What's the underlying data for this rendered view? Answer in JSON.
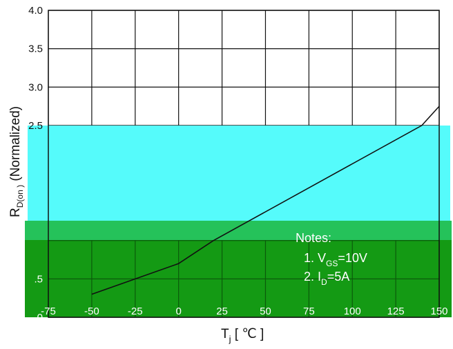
{
  "colors": {
    "band_cyan": "#55fbfb",
    "band_green": "#149a14",
    "strip_green": "#25c25a",
    "grid_dark": "#111111",
    "grid_on_green": "#0b5a0b",
    "curve": "#111111",
    "note_text": "#ffffff"
  },
  "chart_data": {
    "type": "line",
    "xlabel_main": "T",
    "xlabel_sub": "j",
    "xlabel_unit": " [ ℃ ]",
    "ylabel_main": "R",
    "ylabel_sub": "D(on )",
    "ylabel_rest": " (Normalized)",
    "xlim": [
      -75,
      150
    ],
    "ylim": [
      0.0,
      4.0
    ],
    "x_ticks": [
      "-75",
      "-50",
      "-25",
      "0",
      "25",
      "50",
      "75",
      "100",
      "125",
      "150"
    ],
    "y_ticks": [
      {
        "v": 4.0,
        "label": "4.0"
      },
      {
        "v": 3.5,
        "label": "3.5"
      },
      {
        "v": 3.0,
        "label": "3.0"
      },
      {
        "v": 2.5,
        "label": "2.5"
      },
      {
        "v": 0.5,
        "label": ".5"
      },
      {
        "v": 0.0,
        "label": "0"
      }
    ],
    "grid": true,
    "series": [
      {
        "x": [
          -50,
          -25,
          0,
          20,
          140,
          150
        ],
        "y": [
          0.3,
          0.5,
          0.7,
          1.0,
          2.5,
          2.75
        ]
      }
    ],
    "notes_title": "Notes:",
    "notes": [
      {
        "prefix": "1. V",
        "sub": "GS",
        "suffix": "=10V"
      },
      {
        "prefix": "2. I",
        "sub": "D",
        "suffix": "=5A"
      }
    ]
  }
}
